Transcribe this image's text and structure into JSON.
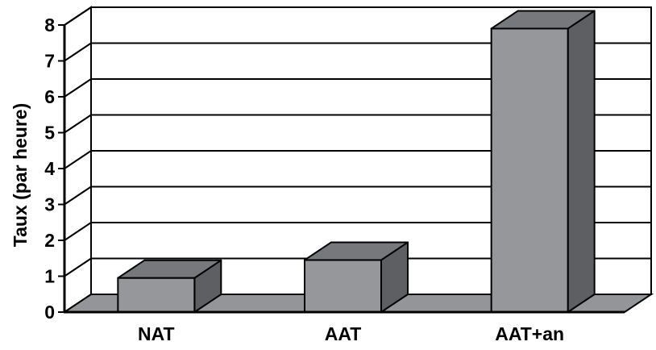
{
  "chart_data": {
    "type": "bar",
    "style": "3d-column",
    "categories": [
      "NAT",
      "AAT",
      "AAT+an"
    ],
    "values": [
      0.95,
      1.45,
      7.9
    ],
    "xlabel": "",
    "ylabel": "Taux (par heure)",
    "ylim": [
      0,
      8
    ],
    "yticks": [
      "0",
      "1",
      "2",
      "3",
      "4",
      "5",
      "6",
      "7",
      "8"
    ],
    "grid": true,
    "legend": "none",
    "colors": {
      "bar_front": "#96979a",
      "bar_top": "#77787b",
      "bar_side": "#5e5f62",
      "floor": "#939598",
      "wall": "#ffffff",
      "line": "#000000"
    }
  }
}
